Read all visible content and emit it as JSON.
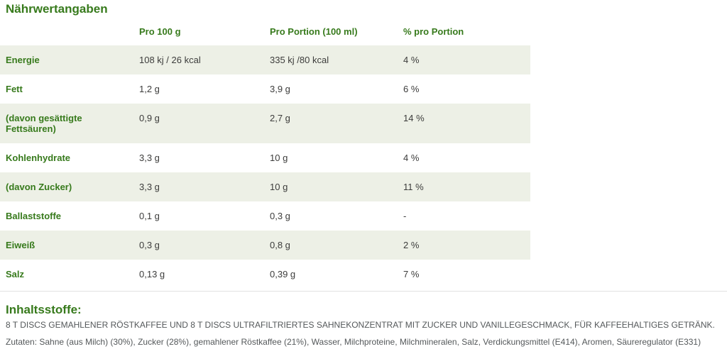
{
  "title": "Nährwertangaben",
  "colors": {
    "accent_green": "#377a1c",
    "row_shade": "#edf0e6",
    "value_text": "#3c3c3b",
    "body_text": "#54585a"
  },
  "table": {
    "headers": [
      "",
      "Pro 100 g",
      "Pro Portion (100 ml)",
      "% pro Portion"
    ],
    "rows": [
      {
        "label": "Energie",
        "per100": "108 kj / 26 kcal",
        "portion": "335 kj /80 kcal",
        "percent": "4 %"
      },
      {
        "label": "Fett",
        "per100": "1,2 g",
        "portion": "3,9 g",
        "percent": "6 %"
      },
      {
        "label": "(davon gesättigte Fettsäuren)",
        "per100": "0,9 g",
        "portion": "2,7 g",
        "percent": "14 %"
      },
      {
        "label": "Kohlenhydrate",
        "per100": "3,3 g",
        "portion": "10 g",
        "percent": "4 %"
      },
      {
        "label": "(davon Zucker)",
        "per100": "3,3 g",
        "portion": "10 g",
        "percent": "11 %"
      },
      {
        "label": "Ballaststoffe",
        "per100": "0,1 g",
        "portion": "0,3 g",
        "percent": "-"
      },
      {
        "label": "Eiweiß",
        "per100": "0,3 g",
        "portion": "0,8 g",
        "percent": "2 %"
      },
      {
        "label": "Salz",
        "per100": "0,13 g",
        "portion": "0,39 g",
        "percent": "7 %"
      }
    ]
  },
  "ingredients": {
    "heading": "Inhaltsstoffe:",
    "description": "8 T DISCS GEMAHLENER RÖSTKAFFEE UND 8 T DISCS ULTRAFILTRIERTES SAHNEKONZENTRAT MIT ZUCKER UND VANILLEGESCHMACK, FÜR KAFFEEHALTIGES GETRÄNK.",
    "zutaten": "Zutaten: Sahne (aus Milch) (30%), Zucker (28%), gemahlener Röstkaffee (21%), Wasser, Milchproteine, Milchmineralen, Salz, Verdickungsmittel (E414), Aromen, Säureregulator (E331)"
  }
}
